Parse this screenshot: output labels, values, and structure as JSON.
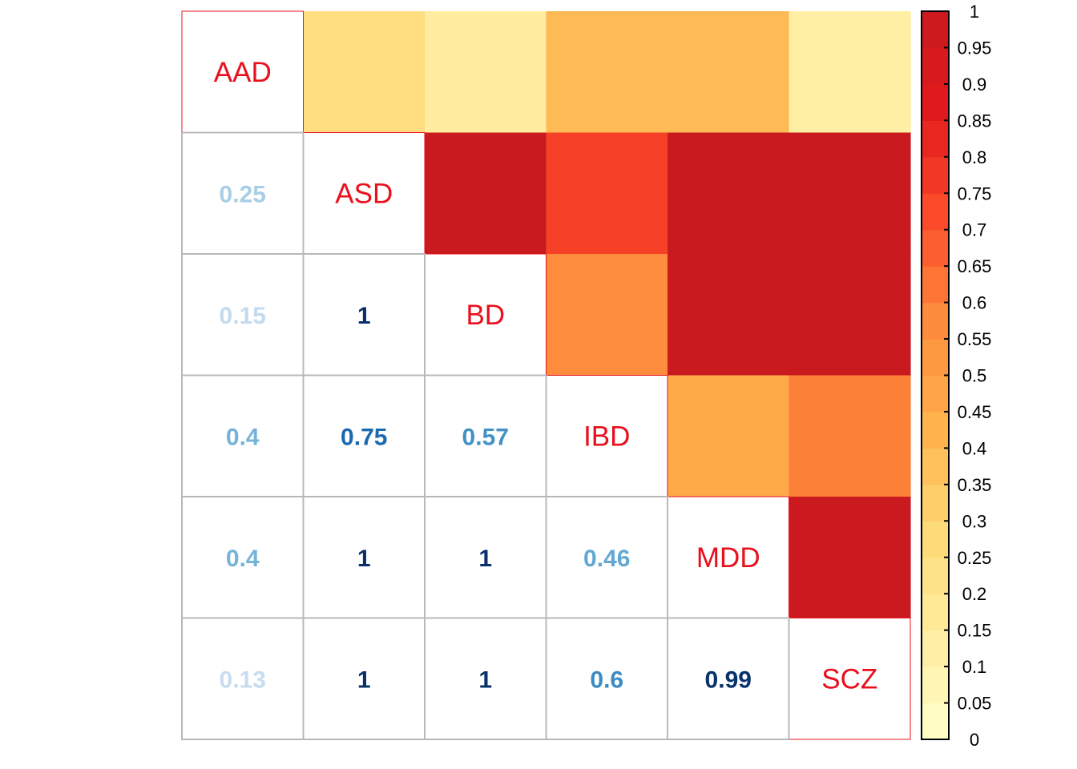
{
  "chart_data": {
    "type": "heatmap",
    "variables": [
      "AAD",
      "ASD",
      "BD",
      "IBD",
      "MDD",
      "SCZ"
    ],
    "matrix": [
      [
        1,
        0.25,
        0.15,
        0.4,
        0.4,
        0.13
      ],
      [
        0.25,
        1,
        1,
        0.75,
        1,
        1
      ],
      [
        0.15,
        1,
        1,
        0.57,
        1,
        1
      ],
      [
        0.4,
        0.75,
        0.57,
        1,
        0.46,
        0.6
      ],
      [
        0.4,
        1,
        1,
        0.46,
        1,
        0.99
      ],
      [
        0.13,
        1,
        1,
        0.6,
        0.99,
        1
      ]
    ],
    "lower_labels": [
      [
        "",
        "",
        "",
        "",
        "",
        ""
      ],
      [
        "0.25",
        "",
        "",
        "",
        "",
        ""
      ],
      [
        "0.15",
        "1",
        "",
        "",
        "",
        ""
      ],
      [
        "0.4",
        "0.75",
        "0.57",
        "",
        "",
        ""
      ],
      [
        "0.4",
        "1",
        "1",
        "0.46",
        "",
        ""
      ],
      [
        "0.13",
        "1",
        "1",
        "0.6",
        "0.99",
        ""
      ]
    ],
    "upper": "color-fill",
    "lower": "numbers",
    "diagonal": "variable-names",
    "colorbar": {
      "range": [
        0,
        1
      ],
      "ticks": [
        "0",
        "0.05",
        "0.1",
        "0.15",
        "0.2",
        "0.25",
        "0.3",
        "0.35",
        "0.4",
        "0.45",
        "0.5",
        "0.55",
        "0.6",
        "0.65",
        "0.7",
        "0.75",
        "0.8",
        "0.85",
        "0.9",
        "0.95",
        "1"
      ],
      "palette": "YlOrRd",
      "position": "right"
    },
    "colors": {
      "diagonal_label": "#e8101d",
      "grid": "#b8b8b8",
      "ylorrd": [
        "#ffffcc",
        "#ffeda0",
        "#fed976",
        "#feb24c",
        "#fd8d3c",
        "#fc4e2a",
        "#e31a1c",
        "#c81a1f"
      ],
      "blues": [
        "#deebf7",
        "#c6dbef",
        "#9ecae1",
        "#6baed6",
        "#4292c6",
        "#2171b5",
        "#08519c",
        "#08306b"
      ]
    }
  }
}
